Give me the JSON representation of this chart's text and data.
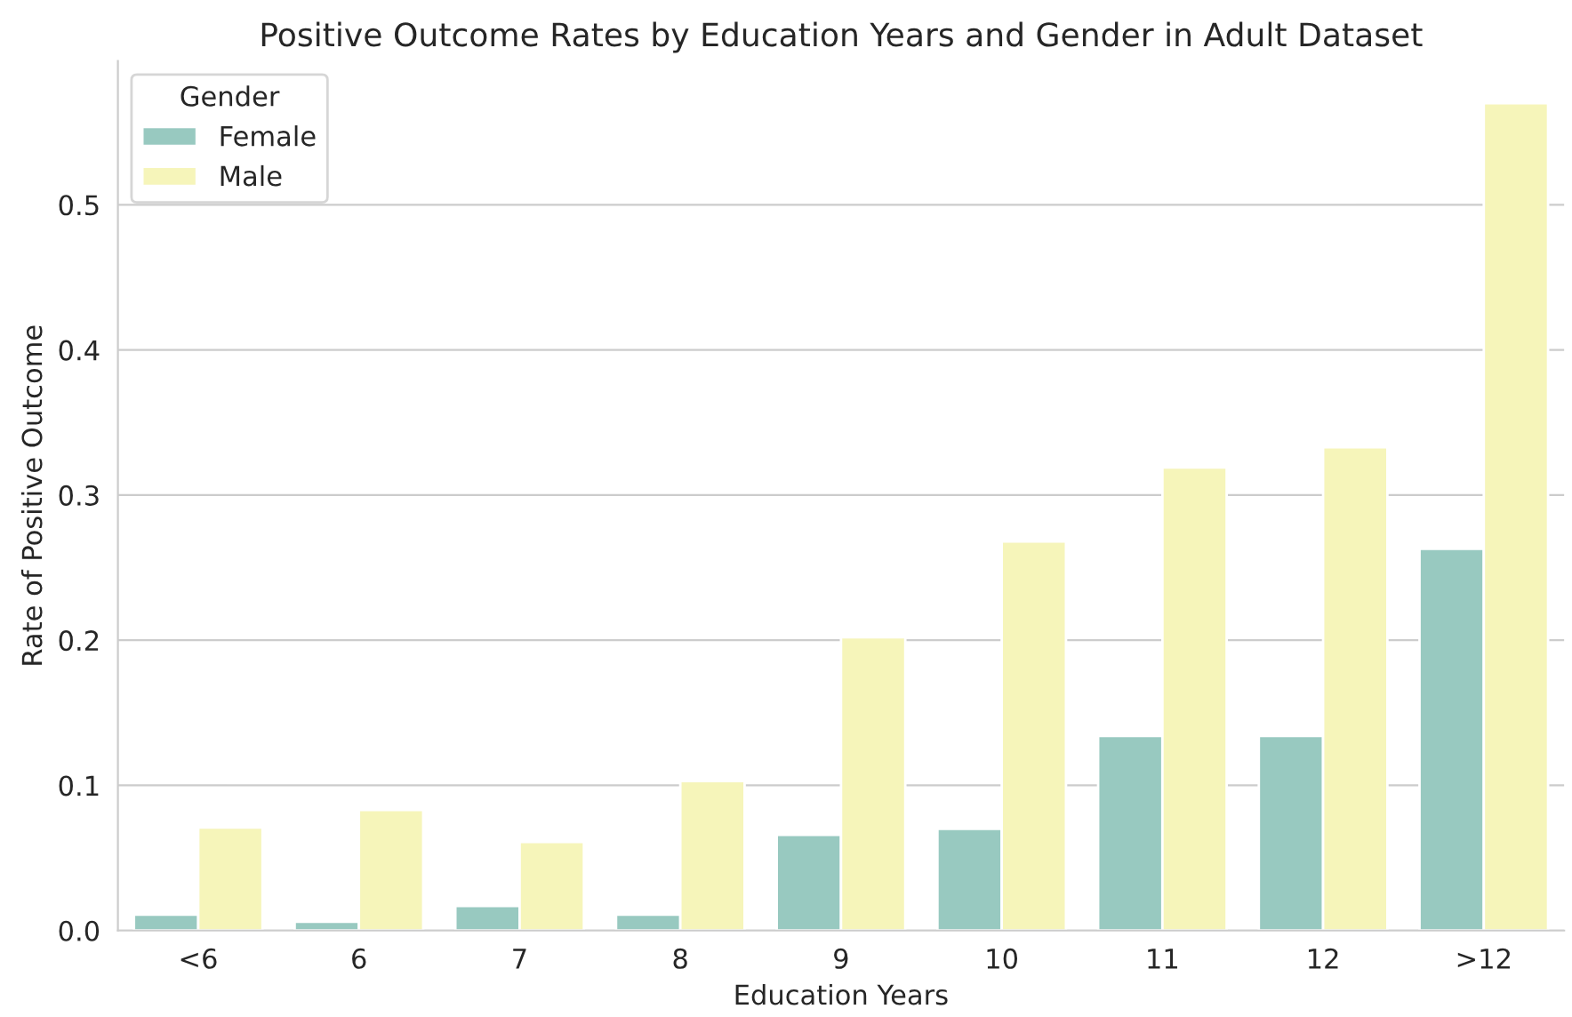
{
  "chart_data": {
    "type": "bar",
    "title": "Positive Outcome Rates by Education Years and Gender in Adult Dataset",
    "xlabel": "Education Years",
    "ylabel": "Rate of Positive Outcome",
    "legend_title": "Gender",
    "categories": [
      "<6",
      "6",
      "7",
      "8",
      "9",
      "10",
      "11",
      "12",
      ">12"
    ],
    "series": [
      {
        "name": "Female",
        "color": "#98c9c0",
        "values": [
          0.011,
          0.006,
          0.017,
          0.011,
          0.066,
          0.07,
          0.134,
          0.134,
          0.263
        ]
      },
      {
        "name": "Male",
        "color": "#f6f5ba",
        "values": [
          0.071,
          0.083,
          0.061,
          0.103,
          0.202,
          0.268,
          0.319,
          0.333,
          0.57
        ]
      }
    ],
    "ylim": [
      0,
      0.599
    ],
    "yticks": [
      {
        "value": 0,
        "label": "0.0"
      },
      0.1,
      0.2,
      0.3,
      0.4,
      0.5
    ],
    "grid": "y",
    "legend": "top left"
  }
}
